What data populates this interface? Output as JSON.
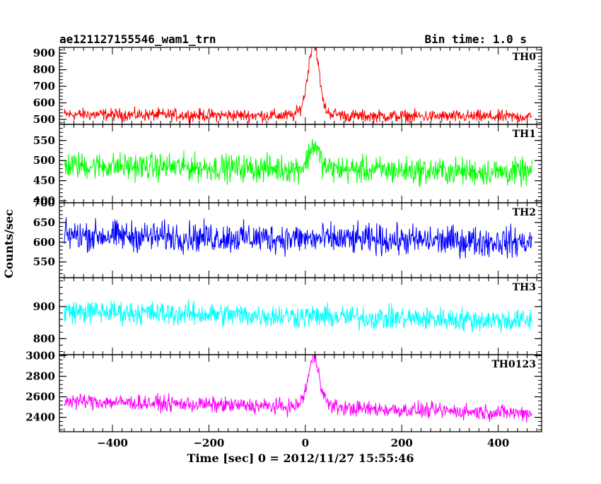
{
  "header": {
    "object_name": "ae121127155546_wam1_trn",
    "bin_time": "Bin time: 1.0 s"
  },
  "chart_data": {
    "type": "line",
    "title": "ae121127155546_wam1_trn",
    "xlabel": "Time [sec] 0 = 2012/11/27 15:55:46",
    "ylabel": "Counts/sec",
    "xlim": [
      -510,
      490
    ],
    "x_range_data": [
      -500,
      470
    ],
    "bin_time_s": 1.0,
    "x_ticks": [
      -400,
      -200,
      0,
      200,
      400
    ],
    "panels": [
      {
        "name": "TH0",
        "color": "#ff0000",
        "ylim": [
          470,
          935
        ],
        "y_ticks": [
          500,
          600,
          700,
          800,
          900
        ],
        "baseline_start": 530,
        "baseline_end": 515,
        "noise_amplitude": 25,
        "peak": {
          "time": 18,
          "height": 400,
          "rise_s": 12,
          "decay_s": 10
        }
      },
      {
        "name": "TH1",
        "color": "#00ff00",
        "ylim": [
          395,
          590
        ],
        "y_ticks": [
          400,
          450,
          500,
          550
        ],
        "baseline_start": 488,
        "baseline_end": 470,
        "noise_amplitude": 22,
        "peak": {
          "time": 18,
          "height": 55,
          "rise_s": 10,
          "decay_s": 10
        }
      },
      {
        "name": "TH2",
        "color": "#0000ff",
        "ylim": [
          510,
          700
        ],
        "y_ticks": [
          550,
          600,
          650,
          700
        ],
        "baseline_start": 618,
        "baseline_end": 600,
        "noise_amplitude": 25,
        "peak": null
      },
      {
        "name": "TH3",
        "color": "#00ffff",
        "ylim": [
          750,
          990
        ],
        "y_ticks": [
          800,
          900
        ],
        "baseline_start": 885,
        "baseline_end": 855,
        "noise_amplitude": 24,
        "peak": null
      },
      {
        "name": "TH0123",
        "color": "#ff00ff",
        "ylim": [
          2260,
          3010
        ],
        "y_ticks": [
          2400,
          2600,
          2800,
          3000
        ],
        "baseline_start": 2560,
        "baseline_end": 2440,
        "noise_amplitude": 50,
        "peak": {
          "time": 18,
          "height": 430,
          "rise_s": 12,
          "decay_s": 12
        }
      }
    ]
  }
}
